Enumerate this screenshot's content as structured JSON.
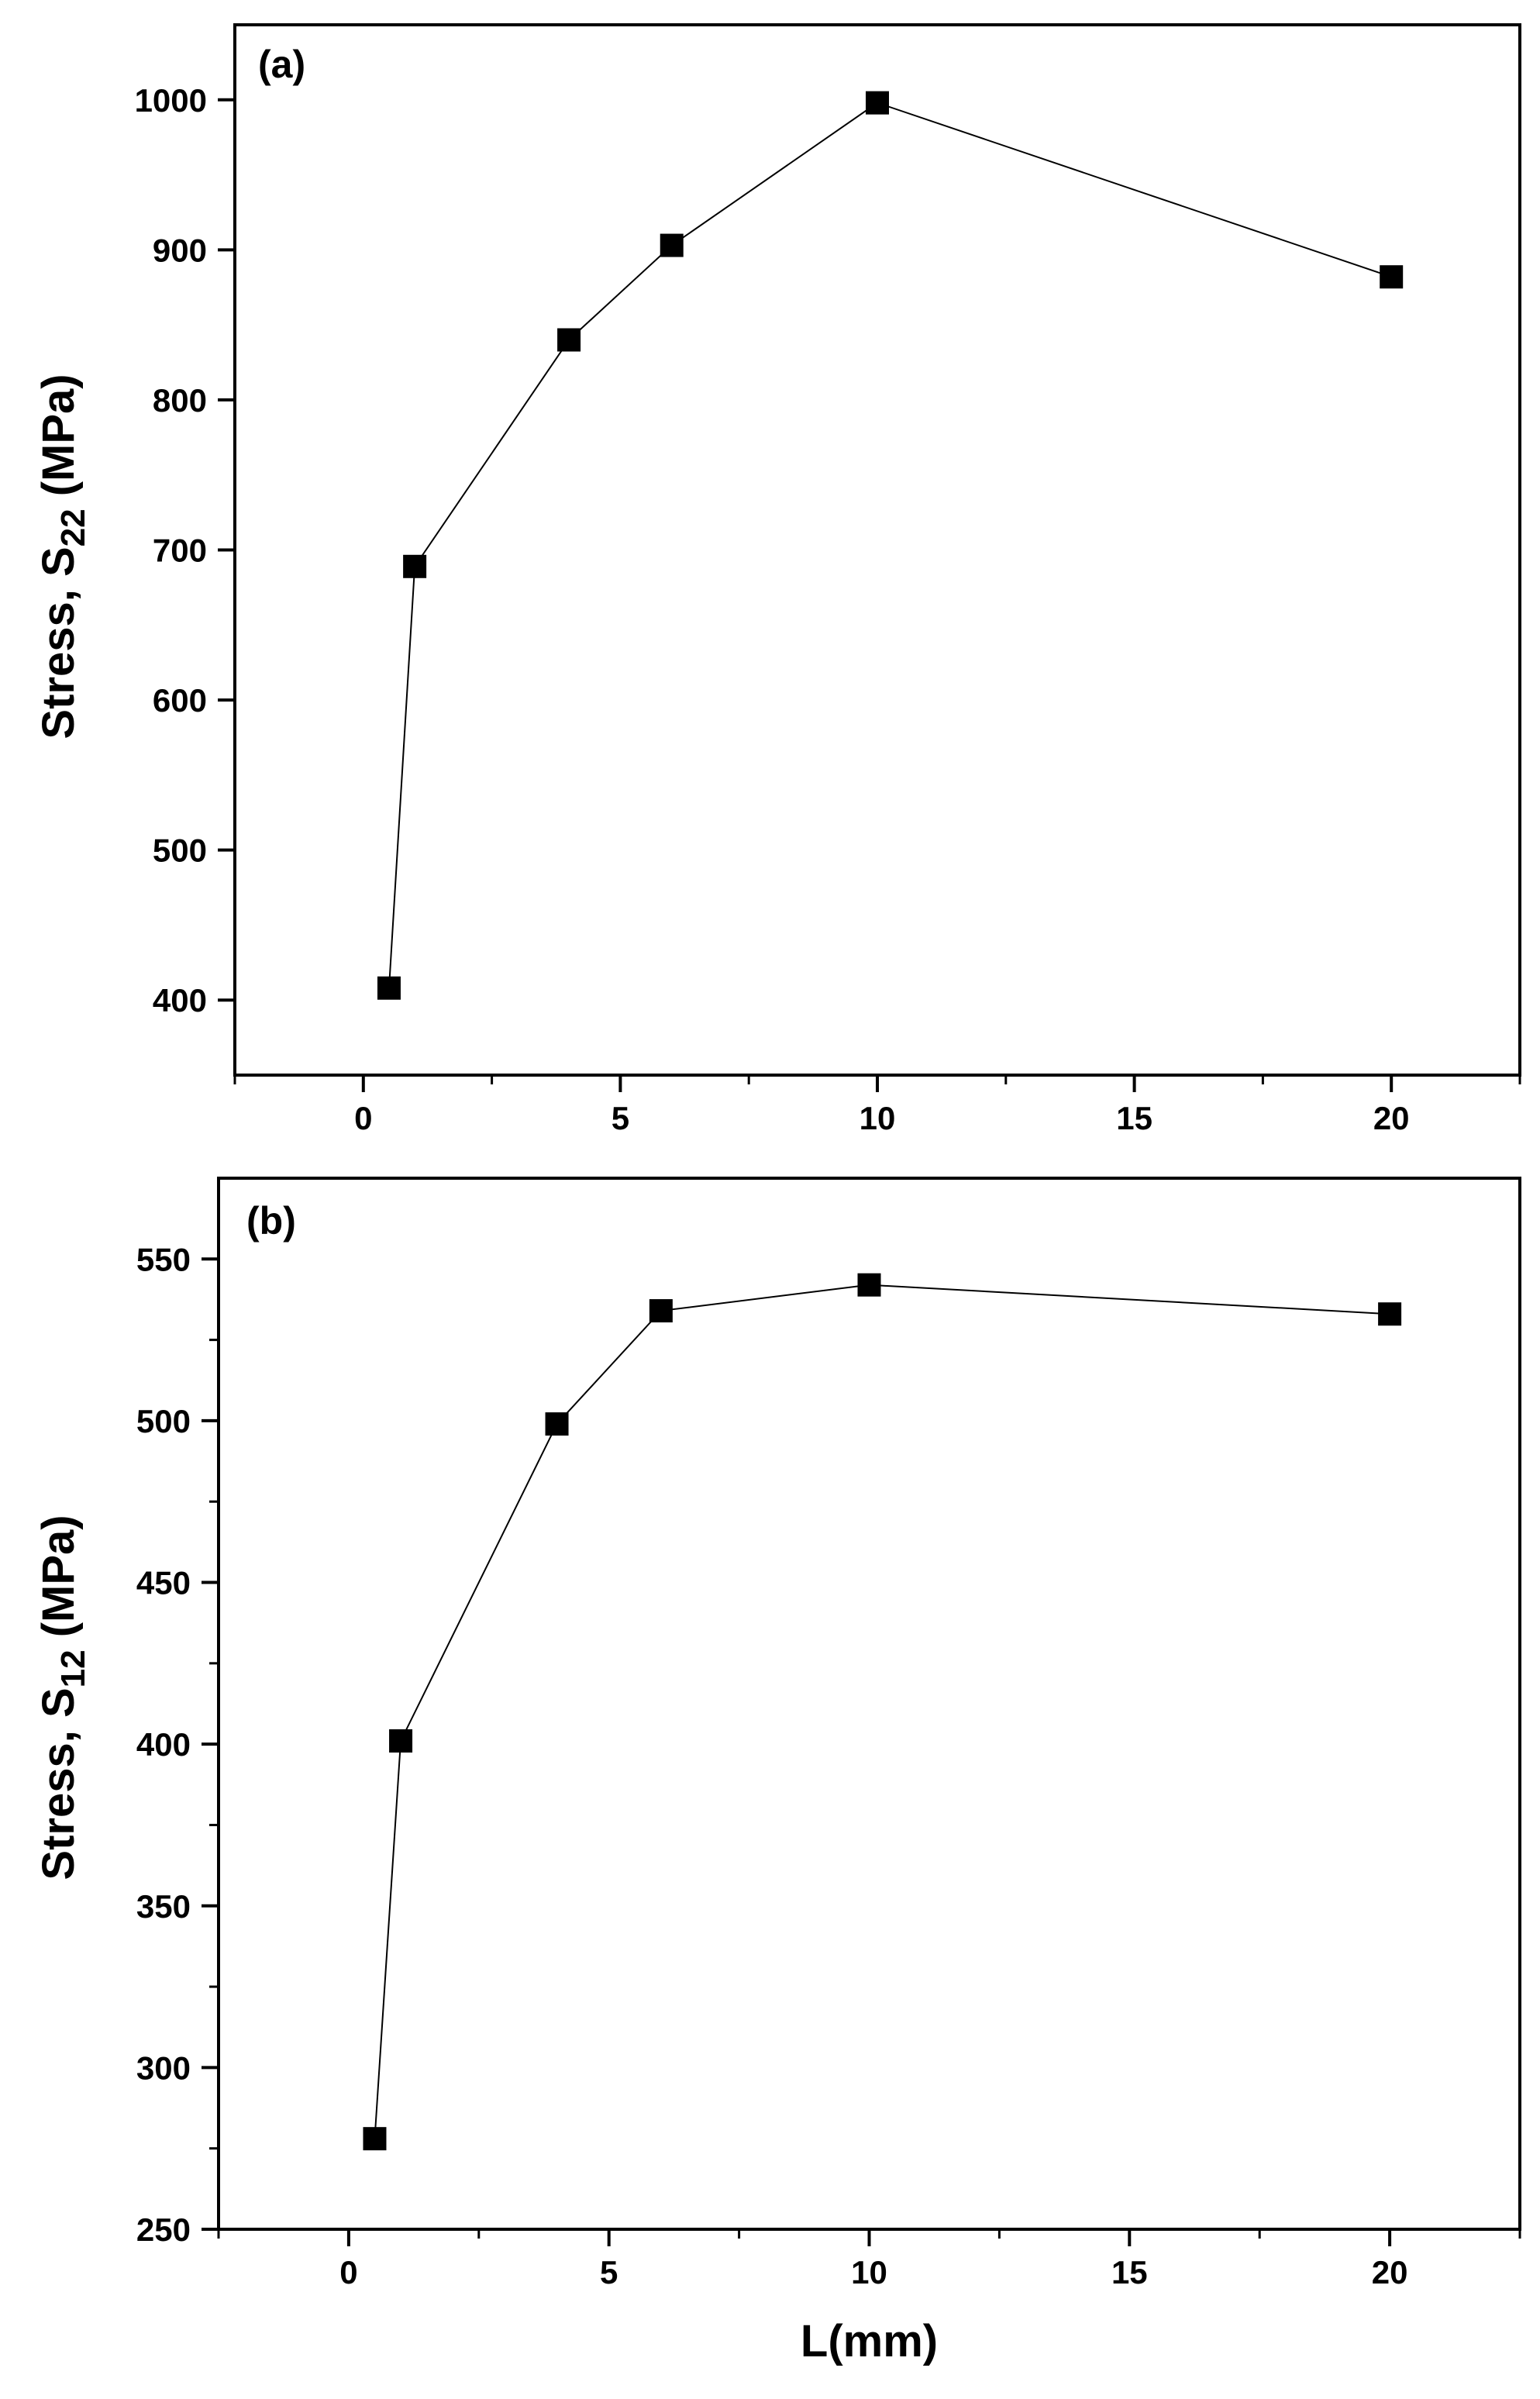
{
  "chart_data": [
    {
      "type": "line",
      "panel_label": "(a)",
      "ylabel": {
        "prefix": "Stress, S",
        "sub": "22",
        "suffix": " (MPa)"
      },
      "xlabel": "",
      "xlim": [
        -2.5,
        22.5
      ],
      "ylim": [
        350,
        1050
      ],
      "xticks": [
        0,
        5,
        10,
        15,
        20
      ],
      "yticks": [
        400,
        500,
        600,
        700,
        800,
        900,
        1000
      ],
      "x": [
        0.5,
        1,
        4,
        6,
        10,
        20
      ],
      "series": [
        {
          "values": [
            408,
            689,
            840,
            903,
            998,
            882
          ]
        }
      ],
      "marker": "square",
      "grid": false
    },
    {
      "type": "line",
      "panel_label": "(b)",
      "ylabel": {
        "prefix": "Stress, S",
        "sub": "12",
        "suffix": " (MPa)"
      },
      "xlabel": "L(mm)",
      "xlim": [
        -2.5,
        22.5
      ],
      "ylim": [
        250,
        575
      ],
      "xticks": [
        0,
        5,
        10,
        15,
        20
      ],
      "yticks": [
        250,
        300,
        350,
        400,
        450,
        500,
        550
      ],
      "x": [
        0.5,
        1,
        4,
        6,
        10,
        20
      ],
      "series": [
        {
          "values": [
            278,
            401,
            499,
            534,
            542,
            533
          ]
        }
      ],
      "marker": "square",
      "grid": false
    }
  ],
  "colors": {
    "line": "#000000",
    "marker": "#000000",
    "frame": "#000000",
    "background": "#ffffff"
  }
}
